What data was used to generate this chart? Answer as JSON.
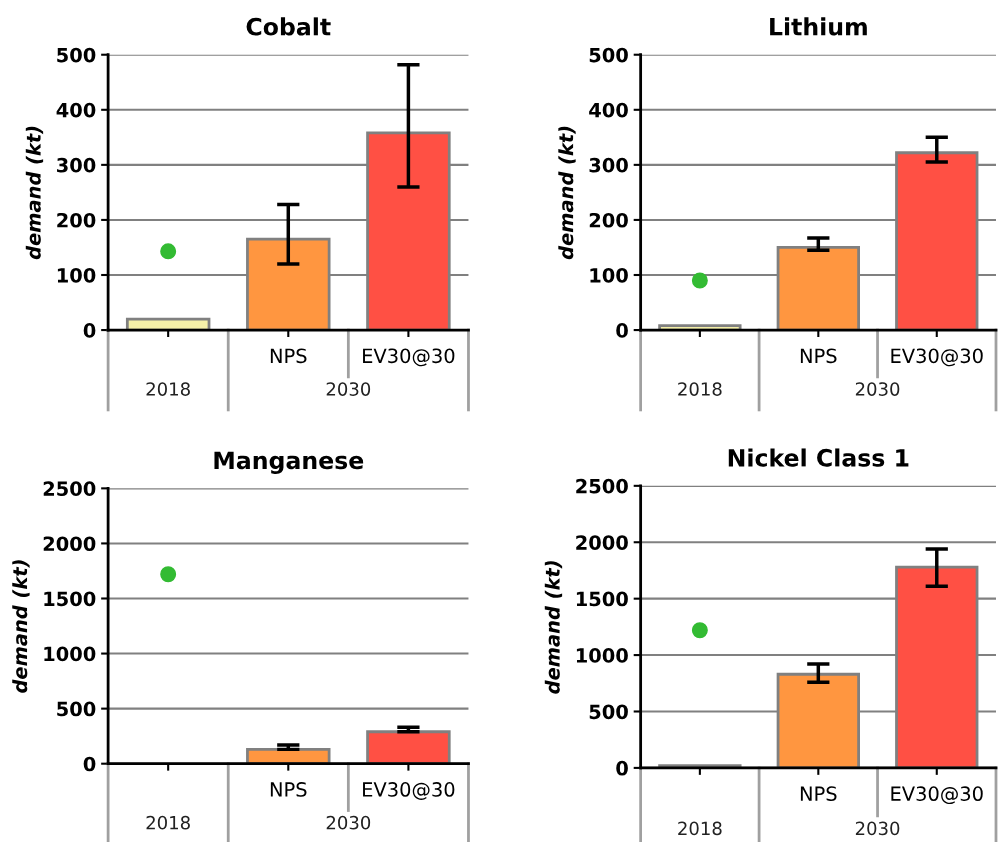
{
  "chart_data": [
    {
      "type": "bar",
      "title": "Cobalt",
      "ylabel": "demand (kt)",
      "categories": [
        null,
        "NPS",
        "EV30@30"
      ],
      "ylim": [
        0,
        500
      ],
      "yticks": [
        0,
        100,
        200,
        300,
        400,
        500
      ],
      "grid": "y",
      "annotations": [
        "2018",
        "2030"
      ],
      "series": [
        {
          "colors": [
            "#f5f0a8",
            "#ff9640",
            "#ff5044"
          ],
          "values": [
            20,
            165,
            358
          ],
          "errors": [
            null,
            [
              120,
              228
            ],
            [
              260,
              482
            ]
          ]
        },
        {
          "type": "scatter",
          "color": "#33bb33",
          "values": [
            143,
            null,
            null
          ]
        }
      ]
    },
    {
      "type": "bar",
      "title": "Lithium",
      "ylabel": "demand (kt)",
      "categories": [
        null,
        "NPS",
        "EV30@30"
      ],
      "ylim": [
        0,
        500
      ],
      "yticks": [
        0,
        100,
        200,
        300,
        400,
        500
      ],
      "grid": "y",
      "annotations": [
        "2018",
        "2030"
      ],
      "series": [
        {
          "colors": [
            "#f5f0a8",
            "#ff9640",
            "#ff5044"
          ],
          "values": [
            8,
            150,
            322
          ],
          "errors": [
            null,
            [
              145,
              167
            ],
            [
              305,
              350
            ]
          ]
        },
        {
          "type": "scatter",
          "color": "#33bb33",
          "values": [
            90,
            null,
            null
          ]
        }
      ]
    },
    {
      "type": "bar",
      "title": "Manganese",
      "ylabel": "demand (kt)",
      "categories": [
        null,
        "NPS",
        "EV30@30"
      ],
      "ylim": [
        0,
        2500
      ],
      "yticks": [
        0,
        500,
        1000,
        1500,
        2000,
        2500
      ],
      "grid": "y",
      "annotations": [
        "2018",
        "2030"
      ],
      "series": [
        {
          "colors": [
            "#f5f0a8",
            "#ff9640",
            "#ff5044"
          ],
          "values": [
            null,
            130,
            290
          ],
          "errors": [
            null,
            [
              130,
              170
            ],
            [
              290,
              330
            ]
          ]
        },
        {
          "type": "scatter",
          "color": "#33bb33",
          "values": [
            1720,
            null,
            null
          ]
        }
      ]
    },
    {
      "type": "bar",
      "title": "Nickel Class 1",
      "ylabel": "demand (kt)",
      "categories": [
        null,
        "NPS",
        "EV30@30"
      ],
      "ylim": [
        0,
        2500
      ],
      "yticks": [
        0,
        500,
        1000,
        1500,
        2000,
        2500
      ],
      "grid": "y",
      "annotations": [
        "2018",
        "2030"
      ],
      "series": [
        {
          "colors": [
            "#1a1a1a",
            "#ff9640",
            "#ff5044"
          ],
          "values": [
            20,
            830,
            1780
          ],
          "errors": [
            null,
            [
              760,
              920
            ],
            [
              1610,
              1940
            ]
          ]
        },
        {
          "type": "scatter",
          "color": "#33bb33",
          "values": [
            1220,
            null,
            null
          ]
        }
      ]
    }
  ]
}
